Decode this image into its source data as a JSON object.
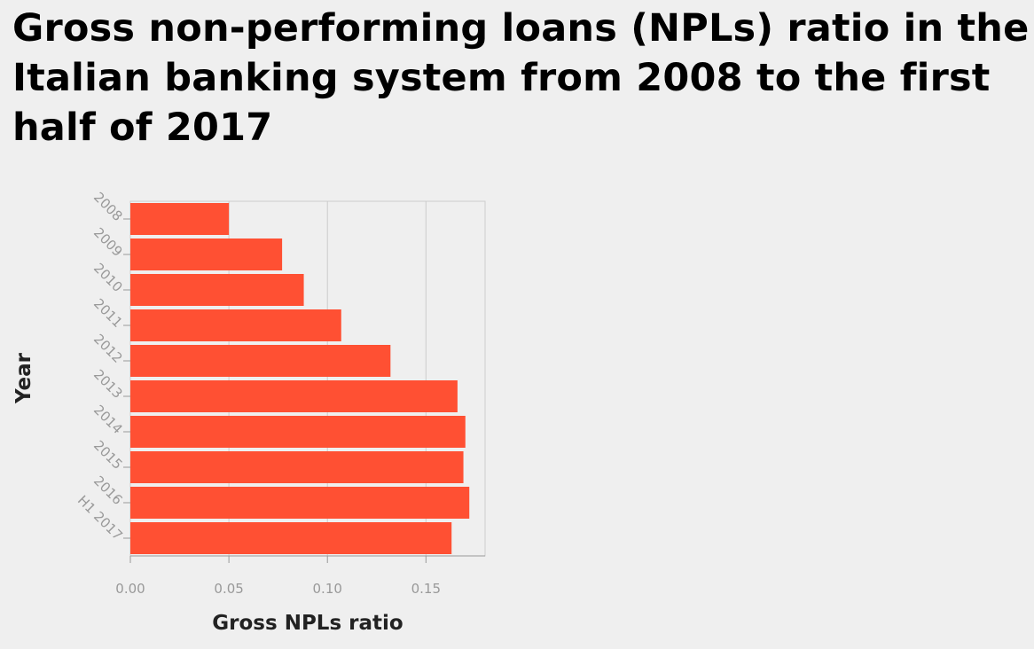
{
  "chart_data": {
    "type": "bar",
    "orientation": "horizontal",
    "title": "Gross non-performing loans (NPLs) ratio in the Italian banking system from 2008 to the first half of 2017",
    "xlabel": "Gross NPLs ratio",
    "ylabel": "Year",
    "categories": [
      "2008",
      "2009",
      "2010",
      "2011",
      "2012",
      "2013",
      "2014",
      "2015",
      "2016",
      "H1 2017"
    ],
    "values": [
      0.05,
      0.077,
      0.088,
      0.107,
      0.132,
      0.166,
      0.17,
      0.169,
      0.172,
      0.163
    ],
    "xlim": [
      0,
      0.18
    ],
    "xticks": [
      "0.00",
      "0.05",
      "0.10",
      "0.15"
    ],
    "xtick_values": [
      0,
      0.05,
      0.1,
      0.15
    ],
    "grid": "vertical",
    "bar_color": "#ff5033",
    "grid_color": "#cccccc",
    "tick_color": "#999999"
  }
}
